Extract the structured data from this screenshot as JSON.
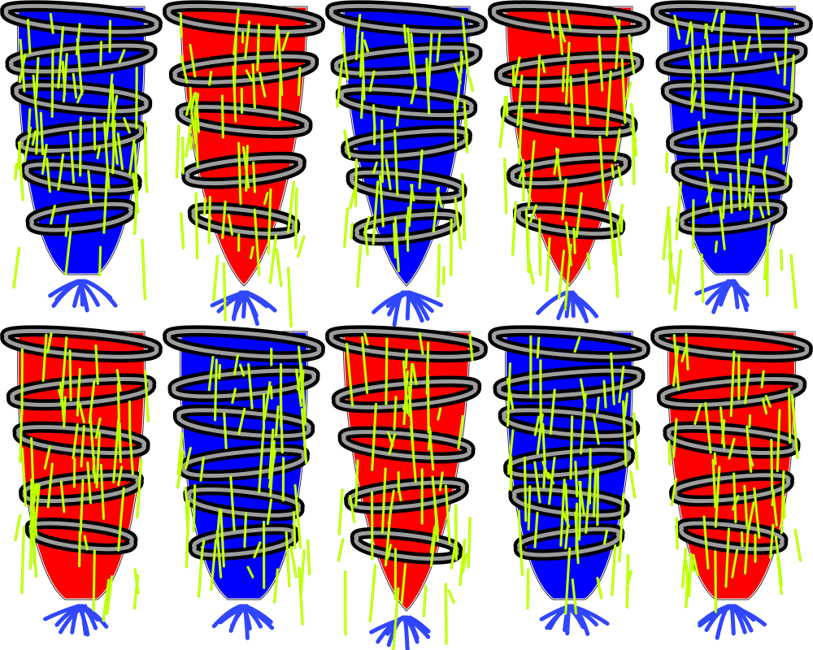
{
  "grid": {
    "rows": 2,
    "columns": 5
  },
  "colors": {
    "background": "#ffffff",
    "red": "#ff0000",
    "blue": "#0000ff",
    "coil": "#000000",
    "coil_highlight": "#b8b8b8",
    "roots": "#1a33ff",
    "strands": "#99ff00",
    "strand_core": "#ffff00",
    "outline": "#333333"
  },
  "figures": [
    {
      "body": "blue",
      "coils": 6,
      "shape": "taper"
    },
    {
      "body": "red",
      "coils": 5,
      "shape": "point"
    },
    {
      "body": "blue",
      "coils": 6,
      "shape": "point"
    },
    {
      "body": "red",
      "coils": 5,
      "shape": "point"
    },
    {
      "body": "blue",
      "coils": 6,
      "shape": "taper"
    },
    {
      "body": "red",
      "coils": 5,
      "shape": "taper"
    },
    {
      "body": "blue",
      "coils": 6,
      "shape": "taper"
    },
    {
      "body": "red",
      "coils": 5,
      "shape": "point"
    },
    {
      "body": "blue",
      "coils": 6,
      "shape": "taper"
    },
    {
      "body": "red",
      "coils": 5,
      "shape": "taper"
    }
  ]
}
